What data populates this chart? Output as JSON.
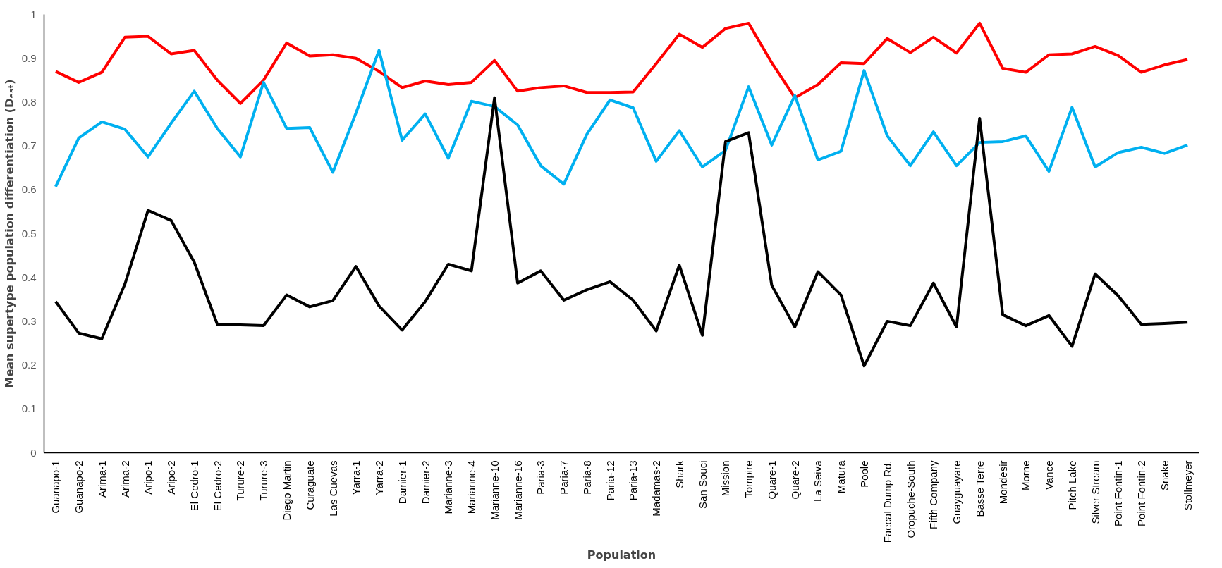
{
  "chart_data": {
    "type": "line",
    "xlabel": "Population",
    "ylabel": "Mean supertype population differentiation (Dₑₛₜ)",
    "categories": [
      "Guanapo-1",
      "Guanapo-2",
      "Arima-1",
      "Arima-2",
      "Aripo-1",
      "Aripo-2",
      "El Cedro-1",
      "El Cedro-2",
      "Turure-2",
      "Turure-3",
      "Diego Martin",
      "Curaguate",
      "Las Cuevas",
      "Yarra-1",
      "Yarra-2",
      "Damier-1",
      "Damier-2",
      "Marianne-3",
      "Marianne-4",
      "Marianne-10",
      "Marianne-16",
      "Paria-3",
      "Paria-7",
      "Paria-8",
      "Paria-12",
      "Paria-13",
      "Madamas-2",
      "Shark",
      "San Souci",
      "Mission",
      "Tompire",
      "Quare-1",
      "Quare-2",
      "La Seiva",
      "Matura",
      "Poole",
      "Faecal Dump Rd.",
      "Oropuche-South",
      "Fifth Company",
      "Guayguayare",
      "Basse Terre",
      "Mondesir",
      "Morne",
      "Vance",
      "Pitch Lake",
      "Silver Stream",
      "Point Fontin-1",
      "Point Fontin-2",
      "Snake",
      "Stollmeyer"
    ],
    "series": [
      {
        "color": "#ff0000",
        "values": [
          0.87,
          0.845,
          0.868,
          0.948,
          0.95,
          0.91,
          0.918,
          0.85,
          0.797,
          0.85,
          0.935,
          0.905,
          0.908,
          0.9,
          0.87,
          0.833,
          0.848,
          0.84,
          0.845,
          0.895,
          0.825,
          0.833,
          0.837,
          0.822,
          0.822,
          0.823,
          0.888,
          0.955,
          0.925,
          0.968,
          0.98,
          0.89,
          0.81,
          0.84,
          0.89,
          0.888,
          0.945,
          0.913,
          0.948,
          0.912,
          0.98,
          0.877,
          0.868,
          0.908,
          0.91,
          0.927,
          0.906,
          0.868,
          0.885,
          0.897
        ]
      },
      {
        "color": "#00b0f0",
        "values": [
          0.607,
          0.718,
          0.755,
          0.738,
          0.675,
          0.752,
          0.825,
          0.74,
          0.675,
          0.845,
          0.74,
          0.742,
          0.64,
          0.775,
          0.918,
          0.713,
          0.773,
          0.672,
          0.802,
          0.79,
          0.748,
          0.655,
          0.613,
          0.727,
          0.805,
          0.787,
          0.665,
          0.735,
          0.652,
          0.69,
          0.835,
          0.702,
          0.815,
          0.668,
          0.688,
          0.872,
          0.723,
          0.655,
          0.732,
          0.655,
          0.708,
          0.71,
          0.723,
          0.642,
          0.788,
          0.652,
          0.685,
          0.697,
          0.683,
          0.702
        ]
      },
      {
        "color": "#000000",
        "values": [
          0.345,
          0.273,
          0.26,
          0.385,
          0.553,
          0.53,
          0.435,
          0.293,
          0.292,
          0.29,
          0.36,
          0.333,
          0.347,
          0.425,
          0.335,
          0.28,
          0.345,
          0.43,
          0.415,
          0.81,
          0.387,
          0.415,
          0.348,
          0.372,
          0.39,
          0.348,
          0.278,
          0.428,
          0.268,
          0.71,
          0.73,
          0.382,
          0.287,
          0.413,
          0.36,
          0.198,
          0.3,
          0.29,
          0.387,
          0.287,
          0.763,
          0.315,
          0.29,
          0.313,
          0.243,
          0.408,
          0.358,
          0.293,
          0.295,
          0.298
        ]
      }
    ],
    "ylim": [
      0,
      1
    ],
    "yticks": [
      0,
      0.1,
      0.2,
      0.3,
      0.4,
      0.5,
      0.6,
      0.7,
      0.8,
      0.9,
      1
    ],
    "grid": false,
    "line_style": "solid",
    "marker": "none"
  }
}
